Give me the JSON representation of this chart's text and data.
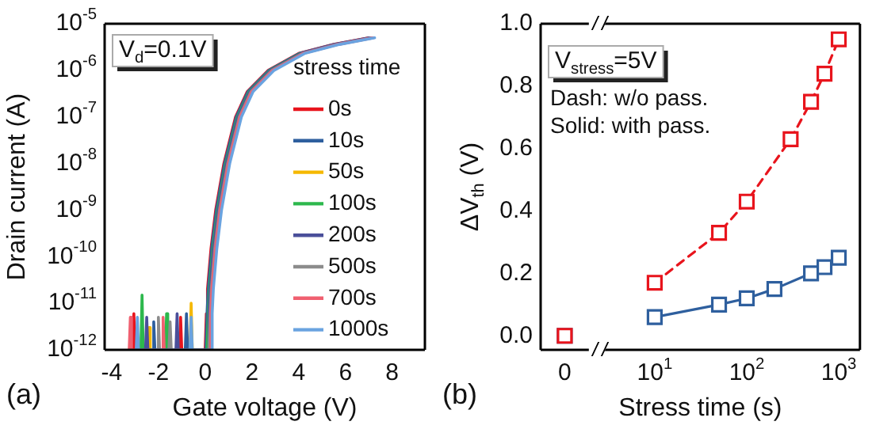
{
  "chart_data": [
    {
      "type": "line",
      "xlabel": "Gate voltage (V)",
      "ylabel": "Drain current (A)",
      "legend_title": "stress time",
      "legend": "right",
      "marker": "none",
      "log": true,
      "grid": false,
      "xlim": [
        -4.3,
        9.4
      ],
      "xticks": [
        -4,
        -2,
        0,
        2,
        4,
        6,
        8
      ],
      "ylim": [
        1e-12,
        1e-05
      ],
      "yticks": [
        {
          "value": 1e-12,
          "label": "10$^{-12}$"
        },
        {
          "value": 1e-11,
          "label": "10$^{-11}$"
        },
        {
          "value": 1e-10,
          "label": "10$^{-10}$"
        },
        {
          "value": 1e-09,
          "label": "10$^{-9}$"
        },
        {
          "value": 1e-08,
          "label": "10$^{-8}$"
        },
        {
          "value": 1e-07,
          "label": "10$^{-7}$"
        },
        {
          "value": 1e-06,
          "label": "10$^{-6}$"
        },
        {
          "value": 1e-05,
          "label": "10$^{-5}$"
        }
      ],
      "annotations": [
        "(a)",
        "V$_{d}$=0.1V"
      ],
      "series": [
        {
          "name": "0s",
          "color": "#e8141c",
          "x": [
            -3.1,
            -3.05,
            -3.0,
            -1.1,
            -1.05,
            -1.0,
            0.0,
            0.05,
            0.1,
            0.25,
            0.45,
            0.8,
            1.3,
            1.8,
            2.7,
            4,
            5.5,
            7
          ],
          "values": [
            1e-12,
            6e-12,
            1e-12,
            1e-12,
            5e-12,
            1e-12,
            1e-12,
            6e-12,
            2e-11,
            1.5e-10,
            1e-09,
            1e-08,
            1e-07,
            3.5e-07,
            1e-06,
            2.3e-06,
            3.6e-06,
            5e-06
          ]
        },
        {
          "name": "10s",
          "color": "#2e5f9e",
          "x": [
            -2.25,
            -2.2,
            -2.15,
            -0.85,
            -0.8,
            -0.75,
            0.03,
            0.08,
            0.13,
            0.28,
            0.48,
            0.83,
            1.33,
            1.83,
            2.73,
            4.03,
            5.53,
            7.03
          ],
          "values": [
            1e-12,
            4e-12,
            1e-12,
            1e-12,
            6e-12,
            1e-12,
            1e-12,
            6e-12,
            2e-11,
            1.5e-10,
            1e-09,
            1e-08,
            1e-07,
            3.5e-07,
            1e-06,
            2.3e-06,
            3.6e-06,
            5e-06
          ]
        },
        {
          "name": "50s",
          "color": "#f5b800",
          "x": [
            -2.45,
            -2.4,
            -2.35,
            -0.65,
            -0.6,
            -0.55
          ],
          "values": [
            1e-12,
            3e-12,
            1e-12,
            1e-12,
            1e-11,
            1e-12
          ]
        },
        {
          "name": "100s",
          "color": "#2db84d",
          "x": [
            -2.75,
            -2.7,
            -2.65,
            -1.7,
            -1.65,
            -1.6,
            0.08,
            0.13,
            0.18,
            0.33,
            0.53,
            0.88,
            1.38,
            1.88,
            2.78,
            4.08
          ],
          "values": [
            1e-12,
            1.5e-11,
            1e-12,
            1e-12,
            6e-12,
            1e-12,
            1e-12,
            6e-12,
            2e-11,
            1.5e-10,
            1e-09,
            1e-08,
            1e-07,
            3.5e-07,
            1e-06,
            2.3e-06
          ]
        },
        {
          "name": "200s",
          "color": "#4a4f9a",
          "x": [
            -2.55,
            -2.5,
            -2.45,
            -1.25,
            -1.2,
            -1.15,
            0.11,
            0.16,
            0.21,
            0.36,
            0.56,
            0.91,
            1.41,
            1.91,
            2.81,
            4.11,
            5.61,
            7.11
          ],
          "values": [
            1e-12,
            5e-12,
            1e-12,
            1e-12,
            6e-12,
            1e-12,
            1e-12,
            6e-12,
            2e-11,
            1.5e-10,
            1e-09,
            1e-08,
            1e-07,
            3.5e-07,
            1e-06,
            2.3e-06,
            3.6e-06,
            5e-06
          ]
        },
        {
          "name": "500s",
          "color": "#8c8c8c",
          "x": [
            -2.05,
            -2.0,
            -1.95,
            -1.55,
            -1.5,
            -1.45,
            0.16,
            0.21,
            0.26,
            0.41,
            0.61,
            0.96,
            1.46,
            1.96,
            2.86,
            4.16,
            5.66,
            7.16
          ],
          "values": [
            1e-12,
            5e-12,
            1e-12,
            1e-12,
            4e-12,
            1e-12,
            1e-12,
            6e-12,
            2e-11,
            1.5e-10,
            1e-09,
            1e-08,
            1e-07,
            3.5e-07,
            1e-06,
            2.3e-06,
            3.6e-06,
            5e-06
          ]
        },
        {
          "name": "700s",
          "color": "#f06070",
          "x": [
            -3.25,
            -3.2,
            -3.15,
            -1.85,
            -1.8,
            -1.75,
            0.19,
            0.24,
            0.29,
            0.44,
            0.64,
            0.99,
            1.49,
            1.99,
            2.89,
            4.19,
            5.69,
            7.19
          ],
          "values": [
            1e-12,
            5e-12,
            1e-12,
            1e-12,
            5e-12,
            1e-12,
            1e-12,
            6e-12,
            2e-11,
            1.5e-10,
            1e-09,
            1e-08,
            1e-07,
            3.5e-07,
            1e-06,
            2.3e-06,
            3.6e-06,
            5e-06
          ]
        },
        {
          "name": "1000s",
          "color": "#6aa3e0",
          "x": [
            -2.95,
            -2.9,
            -2.85,
            -0.65,
            -0.6,
            -0.55,
            0.25,
            0.3,
            0.35,
            0.5,
            0.7,
            1.05,
            1.55,
            2.05,
            2.95,
            4.25,
            5.75,
            7.25
          ],
          "values": [
            1e-12,
            5e-12,
            1e-12,
            1e-12,
            5e-12,
            1e-12,
            1e-12,
            6e-12,
            2e-11,
            1.5e-10,
            1e-09,
            1e-08,
            1e-07,
            3.5e-07,
            1e-06,
            2.3e-06,
            3.6e-06,
            5e-06
          ]
        }
      ]
    },
    {
      "type": "scatter",
      "ylabel": "ΔV$_{th}$ (V)",
      "marker": "square",
      "grid": false,
      "categories": [
        "0"
      ],
      "ylim": [
        -0.045,
        1.0
      ],
      "yticks": [
        {
          "value": 0,
          "label": "0.0"
        },
        0.2,
        0.4,
        0.6,
        0.8,
        {
          "value": 1,
          "label": "1.0"
        }
      ],
      "series": [
        {
          "color": "#2e5f9e",
          "values": [
            0
          ]
        },
        {
          "color": "#e8141c",
          "values": [
            0
          ]
        }
      ]
    },
    {
      "type": "line",
      "xlabel": "Stress time (s)",
      "marker": "square",
      "log": "x",
      "grid": false,
      "tick_labels": "x",
      "xlim": [
        2.6,
        1700
      ],
      "xticks": [
        {
          "value": 10,
          "label": "10$^{1}$"
        },
        {
          "value": 100,
          "label": "10$^{2}$"
        },
        {
          "value": 1000,
          "label": "10$^{3}$"
        }
      ],
      "ylim": [
        -0.045,
        1.0
      ],
      "annotations": [
        "(b)",
        "V$_{stress}$=5V",
        "Dash: w/o pass.",
        "Solid: with pass."
      ],
      "series": [
        {
          "color": "#2e5f9e",
          "line_style": "solid",
          "x": [
            10,
            50,
            100,
            200,
            500,
            700,
            1000
          ],
          "values": [
            0.06,
            0.1,
            0.12,
            0.15,
            0.2,
            0.22,
            0.25
          ]
        },
        {
          "color": "#e8141c",
          "line_style": "dashed",
          "x": [
            10,
            50,
            100,
            300,
            500,
            700,
            1000
          ],
          "values": [
            0.17,
            0.33,
            0.43,
            0.63,
            0.75,
            0.84,
            0.95
          ]
        }
      ]
    }
  ]
}
